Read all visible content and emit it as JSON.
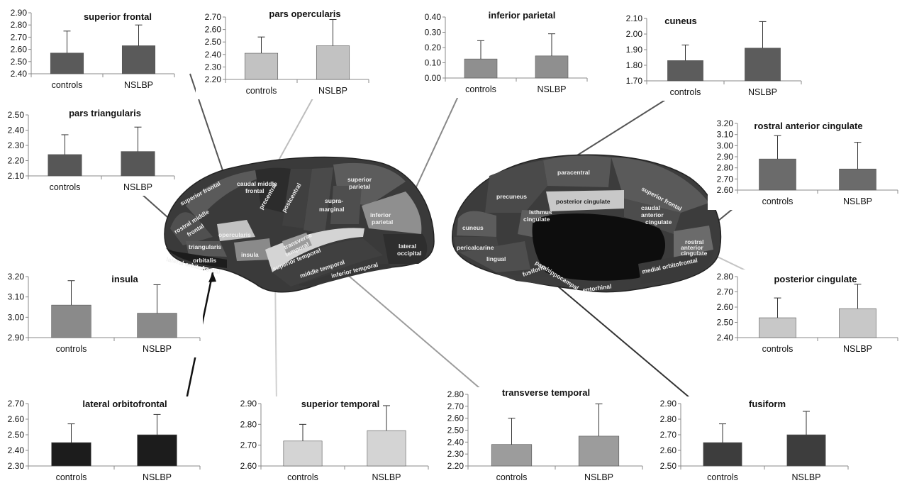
{
  "categories": [
    "controls",
    "NSLBP"
  ],
  "chart_data": [
    {
      "type": "bar",
      "title": "superior frontal",
      "categories": [
        "controls",
        "NSLBP"
      ],
      "ylim": [
        2.4,
        2.9
      ],
      "ticks": [
        "2.40",
        "2.50",
        "2.60",
        "2.70",
        "2.80",
        "2.90"
      ],
      "values": [
        2.57,
        2.63
      ],
      "errors": [
        0.18,
        0.17
      ],
      "color": "#5a5a5a"
    },
    {
      "type": "bar",
      "title": "pars opercularis",
      "categories": [
        "controls",
        "NSLBP"
      ],
      "ylim": [
        2.2,
        2.7
      ],
      "ticks": [
        "2.20",
        "2.30",
        "2.40",
        "2.50",
        "2.60",
        "2.70"
      ],
      "values": [
        2.41,
        2.47
      ],
      "errors": [
        0.13,
        0.21
      ],
      "color": "#c2c2c2"
    },
    {
      "type": "bar",
      "title": "inferior parietal",
      "categories": [
        "controls",
        "NSLBP"
      ],
      "ylim": [
        0.0,
        0.4
      ],
      "ticks": [
        "0.00",
        "0.10",
        "0.20",
        "0.30",
        "0.40"
      ],
      "values": [
        0.125,
        0.145
      ],
      "errors": [
        0.12,
        0.145
      ],
      "color": "#8f8f8f"
    },
    {
      "type": "bar",
      "title": "cuneus",
      "categories": [
        "controls",
        "NSLBP"
      ],
      "ylim": [
        1.7,
        2.1
      ],
      "ticks": [
        "1.70",
        "1.80",
        "1.90",
        "2.00",
        "2.10"
      ],
      "values": [
        1.83,
        1.91
      ],
      "errors": [
        0.1,
        0.17
      ],
      "color": "#5c5c5c"
    },
    {
      "type": "bar",
      "title": "pars triangularis",
      "categories": [
        "controls",
        "NSLBP"
      ],
      "ylim": [
        2.1,
        2.5
      ],
      "ticks": [
        "2.10",
        "2.20",
        "2.30",
        "2.40",
        "2.50"
      ],
      "values": [
        2.24,
        2.26
      ],
      "errors": [
        0.13,
        0.16
      ],
      "color": "#575757"
    },
    {
      "type": "bar",
      "title": "rostral anterior cingulate",
      "categories": [
        "controls",
        "NSLBP"
      ],
      "ylim": [
        2.6,
        3.2
      ],
      "ticks": [
        "2.60",
        "2.70",
        "2.80",
        "2.90",
        "3.00",
        "3.10",
        "3.20"
      ],
      "values": [
        2.88,
        2.79
      ],
      "errors": [
        0.21,
        0.24
      ],
      "color": "#6b6b6b"
    },
    {
      "type": "bar",
      "title": "insula",
      "categories": [
        "controls",
        "NSLBP"
      ],
      "ylim": [
        2.9,
        3.2
      ],
      "ticks": [
        "2.90",
        "3.00",
        "3.10",
        "3.20"
      ],
      "values": [
        3.06,
        3.02
      ],
      "errors": [
        0.12,
        0.14
      ],
      "color": "#8a8a8a"
    },
    {
      "type": "bar",
      "title": "posterior cingulate",
      "categories": [
        "controls",
        "NSLBP"
      ],
      "ylim": [
        2.4,
        2.8
      ],
      "ticks": [
        "2.40",
        "2.50",
        "2.60",
        "2.70",
        "2.80"
      ],
      "values": [
        2.53,
        2.59
      ],
      "errors": [
        0.13,
        0.16
      ],
      "color": "#c8c8c8"
    },
    {
      "type": "bar",
      "title": "lateral orbitofrontal",
      "categories": [
        "controls",
        "NSLBP"
      ],
      "ylim": [
        2.3,
        2.7
      ],
      "ticks": [
        "2.30",
        "2.40",
        "2.50",
        "2.60",
        "2.70"
      ],
      "values": [
        2.45,
        2.5
      ],
      "errors": [
        0.12,
        0.13
      ],
      "color": "#1c1c1c"
    },
    {
      "type": "bar",
      "title": "superior temporal",
      "categories": [
        "controls",
        "NSLBP"
      ],
      "ylim": [
        2.6,
        2.9
      ],
      "ticks": [
        "2.60",
        "2.70",
        "2.80",
        "2.90"
      ],
      "values": [
        2.72,
        2.77
      ],
      "errors": [
        0.08,
        0.12
      ],
      "color": "#d4d4d4"
    },
    {
      "type": "bar",
      "title": "transverse temporal",
      "categories": [
        "controls",
        "NSLBP"
      ],
      "ylim": [
        2.2,
        2.8
      ],
      "ticks": [
        "2.20",
        "2.30",
        "2.40",
        "2.50",
        "2.60",
        "2.70",
        "2.80"
      ],
      "values": [
        2.38,
        2.45
      ],
      "errors": [
        0.22,
        0.27
      ],
      "color": "#9c9c9c"
    },
    {
      "type": "bar",
      "title": "fusiform",
      "categories": [
        "controls",
        "NSLBP"
      ],
      "ylim": [
        2.5,
        2.9
      ],
      "ticks": [
        "2.50",
        "2.60",
        "2.70",
        "2.80",
        "2.90"
      ],
      "values": [
        2.65,
        2.7
      ],
      "errors": [
        0.12,
        0.15
      ],
      "color": "#3d3d3d"
    }
  ],
  "brain_labels": {
    "lateral": [
      "superior frontal",
      "caudal middle",
      "frontal",
      "rostral middle",
      "frontal",
      "precentral",
      "postcentral",
      "supra-",
      "marginal",
      "superior",
      "parietal",
      "inferior",
      "parietal",
      "opercularis",
      "triangularis",
      "orbitalis",
      "insula",
      "transverse",
      "temporal",
      "superior temporal",
      "middle temporal",
      "inferior temporal",
      "lateral orbitofrontal",
      "lateral",
      "occipital"
    ],
    "medial": [
      "paracentral",
      "precuneus",
      "posterior cingulate",
      "superior frontal",
      "isthmus",
      "cingulate",
      "caudal",
      "anterior",
      "cingulate",
      "cuneus",
      "pericalcarine",
      "lingual",
      "rostral",
      "anterior",
      "cingulate",
      "medial orbitofrontal",
      "fusiform",
      "parahippocampal",
      "entorhinal"
    ]
  }
}
